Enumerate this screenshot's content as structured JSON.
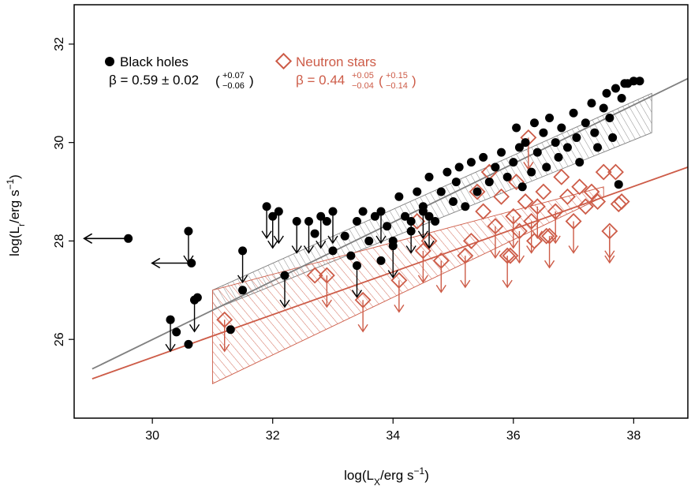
{
  "chart_data": {
    "type": "scatter",
    "title": "",
    "xlabel": "log(L_X/erg s^-1)",
    "ylabel": "log(L_r/erg s^-1)",
    "xlim": [
      28.7,
      38.9
    ],
    "ylim": [
      24.4,
      32.8
    ],
    "xticks": [
      30,
      32,
      34,
      36,
      38
    ],
    "yticks": [
      26,
      28,
      30,
      32
    ],
    "grid": false,
    "legend_placement": "top-left",
    "colors": {
      "black_holes": "#000000",
      "neutron_stars": "#cd5c48",
      "bh_fit": "#808080"
    },
    "series": [
      {
        "name": "Black holes",
        "beta": "β = 0.59 ± 0.02",
        "beta_err_sup": "+0.07",
        "beta_err_sub": "−0.06",
        "fit": {
          "x": [
            29.0,
            38.9
          ],
          "y": [
            25.4,
            31.3
          ]
        },
        "band": [
          [
            31.0,
            26.6
          ],
          [
            38.3,
            30.2
          ],
          [
            38.3,
            31.0
          ],
          [
            31.0,
            27.0
          ]
        ],
        "points": [
          [
            29.6,
            28.05
          ],
          [
            30.3,
            26.4
          ],
          [
            30.4,
            26.15
          ],
          [
            30.6,
            25.9
          ],
          [
            30.65,
            27.55
          ],
          [
            30.7,
            26.8
          ],
          [
            30.75,
            26.85
          ],
          [
            31.3,
            26.2
          ],
          [
            31.5,
            27.0
          ],
          [
            32.7,
            28.15
          ],
          [
            32.9,
            28.4
          ],
          [
            33.0,
            27.8
          ],
          [
            33.2,
            28.1
          ],
          [
            33.3,
            27.7
          ],
          [
            33.4,
            28.4
          ],
          [
            33.5,
            28.6
          ],
          [
            33.6,
            28.0
          ],
          [
            33.7,
            28.5
          ],
          [
            33.8,
            27.6
          ],
          [
            33.9,
            28.3
          ],
          [
            34.0,
            28.0
          ],
          [
            34.1,
            28.9
          ],
          [
            34.2,
            28.5
          ],
          [
            34.3,
            28.2
          ],
          [
            34.4,
            29.0
          ],
          [
            34.5,
            28.6
          ],
          [
            34.6,
            29.3
          ],
          [
            34.7,
            28.4
          ],
          [
            34.8,
            29.0
          ],
          [
            34.9,
            29.4
          ],
          [
            35.0,
            28.8
          ],
          [
            35.05,
            29.2
          ],
          [
            35.1,
            29.5
          ],
          [
            35.2,
            28.7
          ],
          [
            35.3,
            29.6
          ],
          [
            35.4,
            29.0
          ],
          [
            35.5,
            29.7
          ],
          [
            35.6,
            29.2
          ],
          [
            35.7,
            29.5
          ],
          [
            35.8,
            29.8
          ],
          [
            35.9,
            29.3
          ],
          [
            36.0,
            29.6
          ],
          [
            36.05,
            30.3
          ],
          [
            36.1,
            29.9
          ],
          [
            36.15,
            29.1
          ],
          [
            36.2,
            30.0
          ],
          [
            36.3,
            29.4
          ],
          [
            36.35,
            30.4
          ],
          [
            36.4,
            29.8
          ],
          [
            36.5,
            30.2
          ],
          [
            36.55,
            29.5
          ],
          [
            36.6,
            30.5
          ],
          [
            36.7,
            30.0
          ],
          [
            36.75,
            29.7
          ],
          [
            36.8,
            30.3
          ],
          [
            36.9,
            29.9
          ],
          [
            37.0,
            30.6
          ],
          [
            37.05,
            30.1
          ],
          [
            37.1,
            29.6
          ],
          [
            37.2,
            30.4
          ],
          [
            37.3,
            30.8
          ],
          [
            37.35,
            30.2
          ],
          [
            37.4,
            29.9
          ],
          [
            37.5,
            30.7
          ],
          [
            37.55,
            31.0
          ],
          [
            37.6,
            30.5
          ],
          [
            37.65,
            30.1
          ],
          [
            37.7,
            31.1
          ],
          [
            37.8,
            30.9
          ],
          [
            37.85,
            31.2
          ],
          [
            37.9,
            31.2
          ],
          [
            38.0,
            31.25
          ],
          [
            38.1,
            31.25
          ],
          [
            37.75,
            29.15
          ]
        ],
        "upper_limits": [
          [
            30.3,
            26.4
          ],
          [
            30.6,
            28.2
          ],
          [
            30.7,
            26.8
          ],
          [
            31.5,
            27.8
          ],
          [
            31.9,
            28.7
          ],
          [
            32.0,
            28.5
          ],
          [
            32.1,
            28.6
          ],
          [
            32.2,
            27.3
          ],
          [
            32.4,
            28.4
          ],
          [
            32.6,
            28.4
          ],
          [
            32.8,
            28.5
          ],
          [
            33.0,
            28.6
          ],
          [
            33.4,
            27.5
          ],
          [
            33.8,
            28.6
          ],
          [
            34.0,
            27.9
          ],
          [
            34.3,
            28.4
          ],
          [
            34.6,
            28.5
          ],
          [
            34.5,
            28.7
          ]
        ],
        "lower_limits_x": [
          [
            29.6,
            28.05
          ],
          [
            30.65,
            27.55
          ]
        ]
      },
      {
        "name": "Neutron stars",
        "beta": "β = 0.44",
        "beta_sup": "+0.05",
        "beta_sub": "−0.04",
        "beta_err_sup": "+0.15",
        "beta_err_sub": "−0.14",
        "fit": {
          "x": [
            29.0,
            38.9
          ],
          "y": [
            25.2,
            29.5
          ]
        },
        "band": [
          [
            31.0,
            25.1
          ],
          [
            37.5,
            28.9
          ],
          [
            37.5,
            29.1
          ],
          [
            31.0,
            27.0
          ]
        ],
        "points": [
          [
            31.2,
            26.4
          ],
          [
            32.7,
            27.3
          ],
          [
            32.9,
            27.3
          ],
          [
            33.5,
            26.8
          ],
          [
            34.1,
            27.2
          ],
          [
            34.4,
            28.4
          ],
          [
            34.5,
            27.8
          ],
          [
            34.6,
            28.0
          ],
          [
            34.8,
            27.6
          ],
          [
            35.2,
            27.7
          ],
          [
            35.3,
            28.0
          ],
          [
            35.4,
            29.0
          ],
          [
            35.5,
            28.6
          ],
          [
            35.6,
            29.4
          ],
          [
            35.7,
            28.3
          ],
          [
            35.8,
            28.9
          ],
          [
            35.9,
            27.7
          ],
          [
            36.0,
            28.5
          ],
          [
            36.05,
            29.2
          ],
          [
            36.1,
            28.2
          ],
          [
            36.2,
            28.8
          ],
          [
            36.25,
            30.1
          ],
          [
            36.3,
            28.4
          ],
          [
            36.4,
            28.7
          ],
          [
            36.5,
            29.0
          ],
          [
            36.6,
            28.1
          ],
          [
            36.7,
            28.6
          ],
          [
            36.8,
            29.3
          ],
          [
            36.9,
            28.9
          ],
          [
            37.0,
            28.4
          ],
          [
            37.1,
            29.1
          ],
          [
            37.2,
            28.7
          ],
          [
            37.3,
            29.0
          ],
          [
            37.4,
            28.8
          ],
          [
            37.5,
            29.4
          ],
          [
            37.6,
            28.2
          ],
          [
            37.7,
            29.4
          ],
          [
            37.8,
            28.8
          ],
          [
            37.75,
            28.75
          ],
          [
            35.95,
            27.7
          ],
          [
            36.35,
            28.0
          ],
          [
            36.55,
            28.1
          ]
        ],
        "upper_limits": [
          [
            31.2,
            26.4
          ],
          [
            32.9,
            27.3
          ],
          [
            33.5,
            26.8
          ],
          [
            34.1,
            27.2
          ],
          [
            34.5,
            27.8
          ],
          [
            34.8,
            27.6
          ],
          [
            35.2,
            27.7
          ],
          [
            35.7,
            28.3
          ],
          [
            35.9,
            27.7
          ],
          [
            36.0,
            28.5
          ],
          [
            36.1,
            28.2
          ],
          [
            36.25,
            30.1
          ],
          [
            36.3,
            28.4
          ],
          [
            36.4,
            28.7
          ],
          [
            36.6,
            28.1
          ],
          [
            36.7,
            28.6
          ],
          [
            37.0,
            28.4
          ],
          [
            37.6,
            28.2
          ],
          [
            37.6,
            28.3
          ]
        ]
      }
    ]
  }
}
